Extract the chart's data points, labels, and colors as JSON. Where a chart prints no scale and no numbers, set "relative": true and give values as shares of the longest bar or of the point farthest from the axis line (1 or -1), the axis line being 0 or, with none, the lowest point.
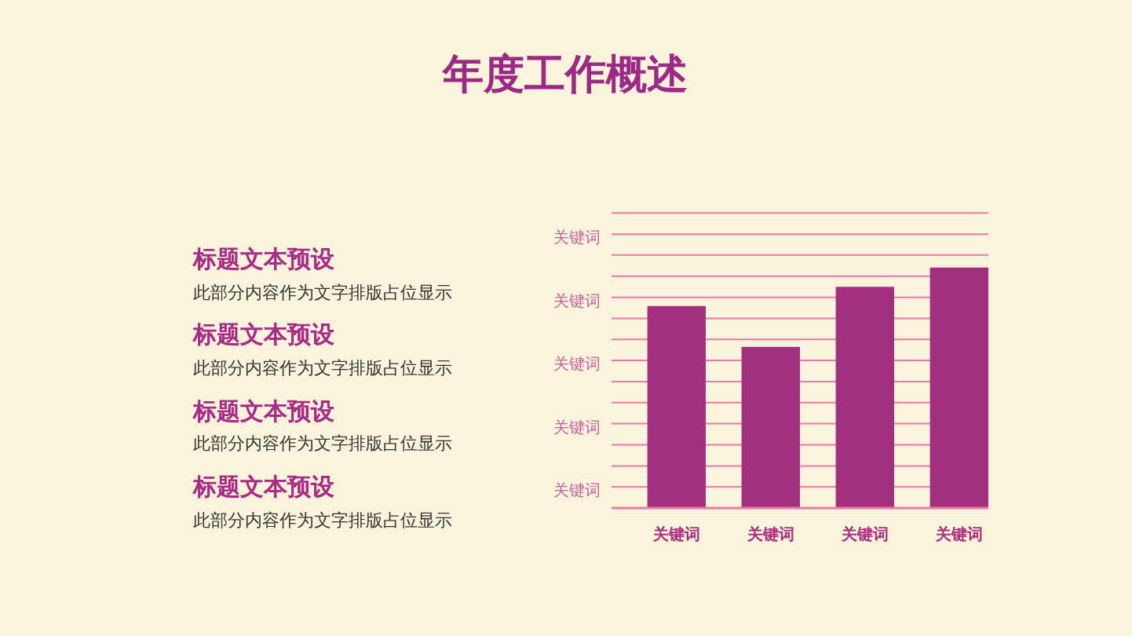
{
  "chart_data": [
    {
      "type": "other",
      "title": "年度工作概述",
      "annotations": [
        "标题文本预设",
        "此部分内容作为文字排版占位显示",
        "标题文本预设",
        "此部分内容作为文字排版占位显示",
        "标题文本预设",
        "此部分内容作为文字排版占位显示",
        "标题文本预设",
        "此部分内容作为文字排版占位显示"
      ]
    },
    {
      "type": "bar",
      "relative": true,
      "categories": [
        "关键词",
        "关键词",
        "关键词",
        "关键词"
      ],
      "values": [
        0.84,
        0.67,
        0.92,
        1
      ],
      "color": "#a3307f",
      "ref_lines": [
        {
          "axis": "y",
          "value": 0.088,
          "label": "关键词",
          "color": "#e97aa9"
        },
        {
          "axis": "y",
          "value": 0.175,
          "color": "#e97aa9"
        },
        {
          "axis": "y",
          "value": 0.263,
          "color": "#e97aa9"
        },
        {
          "axis": "y",
          "value": 0.351,
          "label": "关键词",
          "color": "#e97aa9"
        },
        {
          "axis": "y",
          "value": 0.438,
          "color": "#e97aa9"
        },
        {
          "axis": "y",
          "value": 0.526,
          "color": "#e97aa9"
        },
        {
          "axis": "y",
          "value": 0.614,
          "label": "关键词",
          "color": "#e97aa9"
        },
        {
          "axis": "y",
          "value": 0.701,
          "color": "#e97aa9"
        },
        {
          "axis": "y",
          "value": 0.789,
          "color": "#e97aa9"
        },
        {
          "axis": "y",
          "value": 0.876,
          "label": "关键词",
          "color": "#e97aa9"
        },
        {
          "axis": "y",
          "value": 0.964,
          "color": "#e97aa9"
        },
        {
          "axis": "y",
          "value": 1.052,
          "color": "#e97aa9"
        },
        {
          "axis": "y",
          "value": 1.139,
          "label": "关键词",
          "color": "#e97aa9"
        },
        {
          "axis": "y",
          "value": 1.227,
          "color": "#e97aa9"
        }
      ]
    }
  ]
}
